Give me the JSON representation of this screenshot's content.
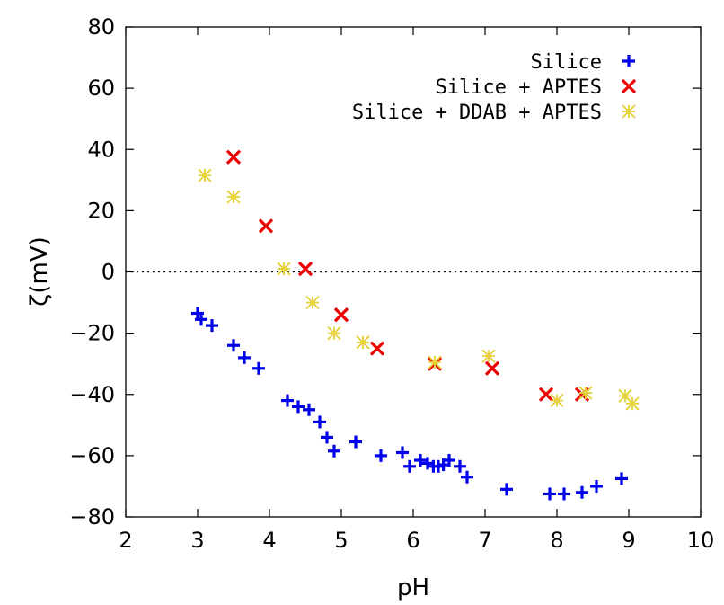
{
  "chart_data": {
    "type": "scatter",
    "xlabel": "pH",
    "ylabel": "ζ(mV)",
    "xlim": [
      2,
      10
    ],
    "ylim": [
      -80,
      80
    ],
    "xticks": [
      2,
      3,
      4,
      5,
      6,
      7,
      8,
      9,
      10
    ],
    "yticks": [
      -80,
      -60,
      -40,
      -20,
      0,
      20,
      40,
      60,
      80
    ],
    "reference_line": {
      "y": 0,
      "style": "dotted"
    },
    "legend_position": "top-right",
    "series": [
      {
        "name": "Silice",
        "marker": "plus",
        "color": "#0000ee",
        "points": [
          [
            3.0,
            -13.5
          ],
          [
            3.05,
            -15.5
          ],
          [
            3.2,
            -17.5
          ],
          [
            3.5,
            -24
          ],
          [
            3.65,
            -28
          ],
          [
            3.85,
            -31.5
          ],
          [
            4.25,
            -42
          ],
          [
            4.4,
            -44
          ],
          [
            4.55,
            -45
          ],
          [
            4.7,
            -49
          ],
          [
            4.8,
            -54
          ],
          [
            4.9,
            -58.5
          ],
          [
            5.2,
            -55.5
          ],
          [
            5.55,
            -60
          ],
          [
            5.85,
            -59
          ],
          [
            5.95,
            -63.5
          ],
          [
            6.1,
            -61.5
          ],
          [
            6.2,
            -62.5
          ],
          [
            6.28,
            -63.5
          ],
          [
            6.35,
            -63.5
          ],
          [
            6.42,
            -63
          ],
          [
            6.5,
            -61.5
          ],
          [
            6.65,
            -63.5
          ],
          [
            6.75,
            -67
          ],
          [
            7.3,
            -71
          ],
          [
            7.9,
            -72.5
          ],
          [
            8.1,
            -72.5
          ],
          [
            8.35,
            -72
          ],
          [
            8.55,
            -70
          ],
          [
            8.9,
            -67.5
          ]
        ]
      },
      {
        "name": "Silice + APTES",
        "marker": "cross",
        "color": "#ee0000",
        "points": [
          [
            3.5,
            37.5
          ],
          [
            3.95,
            15
          ],
          [
            4.5,
            1
          ],
          [
            5.0,
            -14
          ],
          [
            5.5,
            -25
          ],
          [
            6.3,
            -30
          ],
          [
            7.1,
            -31.5
          ],
          [
            7.85,
            -40
          ],
          [
            8.35,
            -40
          ]
        ]
      },
      {
        "name": "Silice + DDAB + APTES",
        "marker": "star",
        "color": "#e6d23c",
        "points": [
          [
            3.1,
            31.5
          ],
          [
            3.5,
            24.5
          ],
          [
            4.2,
            1
          ],
          [
            4.6,
            -10
          ],
          [
            4.9,
            -20
          ],
          [
            5.3,
            -23
          ],
          [
            6.3,
            -29.5
          ],
          [
            7.05,
            -27.5
          ],
          [
            8.0,
            -42
          ],
          [
            8.4,
            -39.5
          ],
          [
            8.95,
            -40.5
          ],
          [
            9.05,
            -43
          ]
        ]
      }
    ]
  }
}
